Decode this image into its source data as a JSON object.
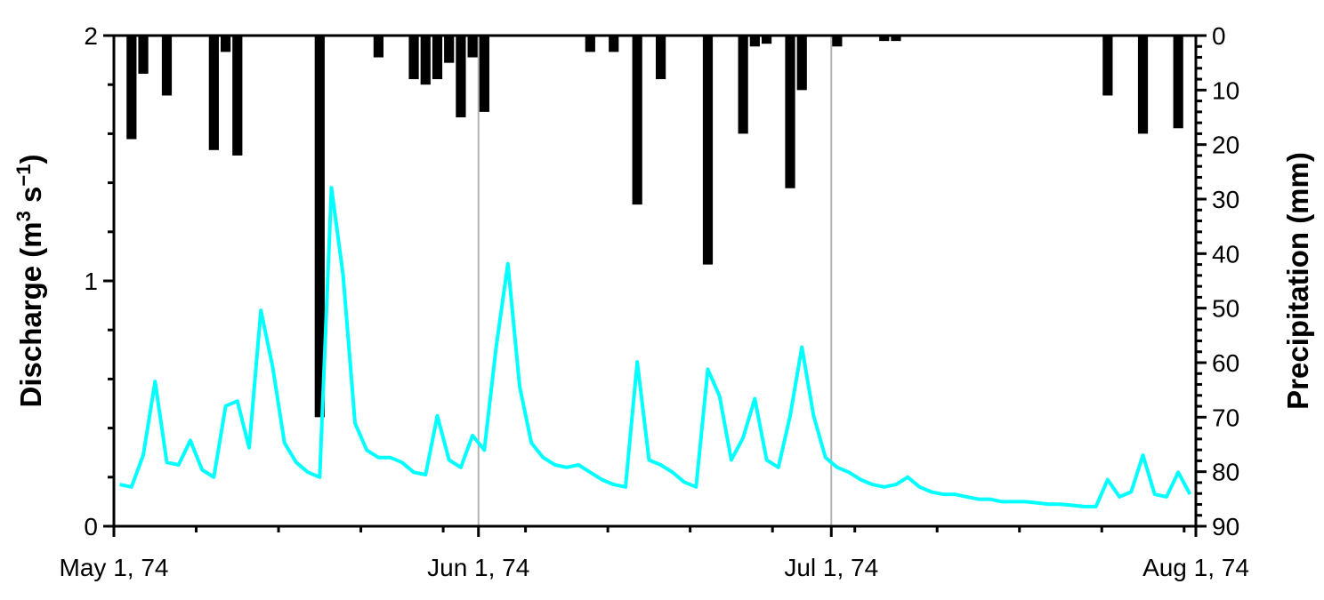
{
  "chart_data": {
    "type": "line+bar",
    "x_axis": {
      "type": "date",
      "range": [
        "1974-05-01",
        "1974-08-01"
      ],
      "tick_labels": [
        "May 1, 74",
        "Jun 1, 74",
        "Jul 1, 74",
        "Aug 1, 74"
      ],
      "tick_dates": [
        "1974-05-01",
        "1974-06-01",
        "1974-07-01",
        "1974-08-01"
      ],
      "gridlines_at": [
        "1974-06-01",
        "1974-07-01"
      ]
    },
    "left_axis": {
      "label_main": "Discharge (m",
      "label_sup1": "3",
      "label_mid": " s",
      "label_sup2": "−1",
      "label_end": ")",
      "range": [
        0,
        2
      ],
      "tick_labels": [
        "0",
        "1",
        "2"
      ],
      "tick_values": [
        0,
        1,
        2
      ]
    },
    "right_axis": {
      "label": "Precipitation (mm)",
      "range": [
        0,
        90
      ],
      "inverted": true,
      "tick_labels": [
        "0",
        "10",
        "20",
        "30",
        "40",
        "50",
        "60",
        "70",
        "80",
        "90"
      ],
      "tick_values": [
        0,
        10,
        20,
        30,
        40,
        50,
        60,
        70,
        80,
        90
      ]
    },
    "series": [
      {
        "kind": "line",
        "axis": "left",
        "color": "#00ffff",
        "points": [
          [
            "1974-05-01",
            0.17
          ],
          [
            "1974-05-02",
            0.16
          ],
          [
            "1974-05-03",
            0.29
          ],
          [
            "1974-05-04",
            0.59
          ],
          [
            "1974-05-05",
            0.26
          ],
          [
            "1974-05-06",
            0.25
          ],
          [
            "1974-05-07",
            0.35
          ],
          [
            "1974-05-08",
            0.23
          ],
          [
            "1974-05-09",
            0.2
          ],
          [
            "1974-05-10",
            0.49
          ],
          [
            "1974-05-11",
            0.51
          ],
          [
            "1974-05-12",
            0.32
          ],
          [
            "1974-05-13",
            0.88
          ],
          [
            "1974-05-14",
            0.65
          ],
          [
            "1974-05-15",
            0.34
          ],
          [
            "1974-05-16",
            0.26
          ],
          [
            "1974-05-17",
            0.22
          ],
          [
            "1974-05-18",
            0.2
          ],
          [
            "1974-05-19",
            1.38
          ],
          [
            "1974-05-20",
            1.02
          ],
          [
            "1974-05-21",
            0.42
          ],
          [
            "1974-05-22",
            0.31
          ],
          [
            "1974-05-23",
            0.28
          ],
          [
            "1974-05-24",
            0.28
          ],
          [
            "1974-05-25",
            0.26
          ],
          [
            "1974-05-26",
            0.22
          ],
          [
            "1974-05-27",
            0.21
          ],
          [
            "1974-05-28",
            0.45
          ],
          [
            "1974-05-29",
            0.27
          ],
          [
            "1974-05-30",
            0.24
          ],
          [
            "1974-05-31",
            0.37
          ],
          [
            "1974-06-01",
            0.31
          ],
          [
            "1974-06-02",
            0.73
          ],
          [
            "1974-06-03",
            1.07
          ],
          [
            "1974-06-04",
            0.57
          ],
          [
            "1974-06-05",
            0.34
          ],
          [
            "1974-06-06",
            0.28
          ],
          [
            "1974-06-07",
            0.25
          ],
          [
            "1974-06-08",
            0.24
          ],
          [
            "1974-06-09",
            0.25
          ],
          [
            "1974-06-10",
            0.22
          ],
          [
            "1974-06-11",
            0.19
          ],
          [
            "1974-06-12",
            0.17
          ],
          [
            "1974-06-13",
            0.16
          ],
          [
            "1974-06-14",
            0.67
          ],
          [
            "1974-06-15",
            0.27
          ],
          [
            "1974-06-16",
            0.25
          ],
          [
            "1974-06-17",
            0.22
          ],
          [
            "1974-06-18",
            0.18
          ],
          [
            "1974-06-19",
            0.16
          ],
          [
            "1974-06-20",
            0.64
          ],
          [
            "1974-06-21",
            0.53
          ],
          [
            "1974-06-22",
            0.27
          ],
          [
            "1974-06-23",
            0.36
          ],
          [
            "1974-06-24",
            0.52
          ],
          [
            "1974-06-25",
            0.27
          ],
          [
            "1974-06-26",
            0.24
          ],
          [
            "1974-06-27",
            0.45
          ],
          [
            "1974-06-28",
            0.73
          ],
          [
            "1974-06-29",
            0.45
          ],
          [
            "1974-06-30",
            0.28
          ],
          [
            "1974-07-01",
            0.24
          ],
          [
            "1974-07-02",
            0.22
          ],
          [
            "1974-07-03",
            0.19
          ],
          [
            "1974-07-04",
            0.17
          ],
          [
            "1974-07-05",
            0.16
          ],
          [
            "1974-07-06",
            0.17
          ],
          [
            "1974-07-07",
            0.2
          ],
          [
            "1974-07-08",
            0.16
          ],
          [
            "1974-07-09",
            0.14
          ],
          [
            "1974-07-10",
            0.13
          ],
          [
            "1974-07-11",
            0.13
          ],
          [
            "1974-07-12",
            0.12
          ],
          [
            "1974-07-13",
            0.11
          ],
          [
            "1974-07-14",
            0.11
          ],
          [
            "1974-07-15",
            0.1
          ],
          [
            "1974-07-16",
            0.1
          ],
          [
            "1974-07-17",
            0.1
          ],
          [
            "1974-07-18",
            0.095
          ],
          [
            "1974-07-19",
            0.09
          ],
          [
            "1974-07-20",
            0.09
          ],
          [
            "1974-07-21",
            0.085
          ],
          [
            "1974-07-22",
            0.08
          ],
          [
            "1974-07-23",
            0.08
          ],
          [
            "1974-07-24",
            0.19
          ],
          [
            "1974-07-25",
            0.12
          ],
          [
            "1974-07-26",
            0.14
          ],
          [
            "1974-07-27",
            0.29
          ],
          [
            "1974-07-28",
            0.13
          ],
          [
            "1974-07-29",
            0.12
          ],
          [
            "1974-07-30",
            0.22
          ],
          [
            "1974-07-31",
            0.13
          ]
        ]
      },
      {
        "kind": "bar",
        "axis": "right",
        "color": "#000000",
        "points": [
          [
            "1974-05-02",
            19
          ],
          [
            "1974-05-03",
            7
          ],
          [
            "1974-05-05",
            11
          ],
          [
            "1974-05-09",
            21
          ],
          [
            "1974-05-10",
            3
          ],
          [
            "1974-05-11",
            22
          ],
          [
            "1974-05-18",
            70
          ],
          [
            "1974-05-23",
            4
          ],
          [
            "1974-05-26",
            8
          ],
          [
            "1974-05-27",
            9
          ],
          [
            "1974-05-28",
            8
          ],
          [
            "1974-05-29",
            5
          ],
          [
            "1974-05-30",
            15
          ],
          [
            "1974-05-31",
            4
          ],
          [
            "1974-06-01",
            14
          ],
          [
            "1974-06-10",
            3
          ],
          [
            "1974-06-12",
            3
          ],
          [
            "1974-06-14",
            31
          ],
          [
            "1974-06-16",
            8
          ],
          [
            "1974-06-20",
            42
          ],
          [
            "1974-06-23",
            18
          ],
          [
            "1974-06-24",
            2
          ],
          [
            "1974-06-25",
            1.5
          ],
          [
            "1974-06-27",
            28
          ],
          [
            "1974-06-28",
            10
          ],
          [
            "1974-07-01",
            2
          ],
          [
            "1974-07-05",
            1
          ],
          [
            "1974-07-06",
            1
          ],
          [
            "1974-07-24",
            11
          ],
          [
            "1974-07-27",
            18
          ],
          [
            "1974-07-30",
            17
          ]
        ]
      }
    ]
  }
}
